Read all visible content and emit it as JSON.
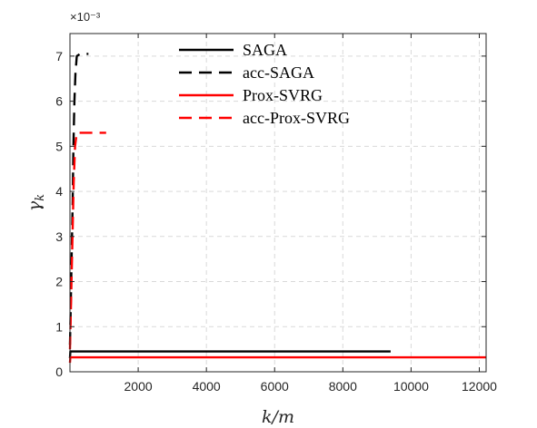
{
  "chart_data": {
    "type": "line",
    "xlabel": "k/m",
    "ylabel": "γ_k",
    "ylabel_main": "γ",
    "ylabel_sub": "k",
    "xlim": [
      0,
      12200
    ],
    "ylim": [
      0,
      0.0075
    ],
    "y_exponent_label": "×10⁻³",
    "xticks": [
      2000,
      4000,
      6000,
      8000,
      10000,
      12000
    ],
    "xtick_labels": [
      "2000",
      "4000",
      "6000",
      "8000",
      "10000",
      "12000"
    ],
    "yticks": [
      0,
      0.001,
      0.002,
      0.003,
      0.004,
      0.005,
      0.006,
      0.007
    ],
    "ytick_labels": [
      "0",
      "1",
      "2",
      "3",
      "4",
      "5",
      "6",
      "7"
    ],
    "grid": true,
    "legend_position": "top-center",
    "series": [
      {
        "name": "SAGA",
        "color": "#000000",
        "dash": "solid",
        "x": [
          0,
          10,
          20,
          9400
        ],
        "y": [
          0.0003,
          0.00045,
          0.00045,
          0.00045
        ]
      },
      {
        "name": "acc-SAGA",
        "color": "#000000",
        "dash": "dashed",
        "x": [
          0,
          20,
          50,
          80,
          100,
          130,
          160,
          200,
          300,
          540
        ],
        "y": [
          0.0006,
          0.0014,
          0.0026,
          0.0038,
          0.005,
          0.006,
          0.0066,
          0.007,
          0.00705,
          0.00705
        ]
      },
      {
        "name": "Prox-SVRG",
        "color": "#ff0000",
        "dash": "solid",
        "x": [
          0,
          10,
          20,
          12200
        ],
        "y": [
          0.0002,
          0.00032,
          0.00032,
          0.00032
        ]
      },
      {
        "name": "acc-Prox-SVRG",
        "color": "#ff0000",
        "dash": "dashed",
        "x": [
          0,
          20,
          50,
          80,
          110,
          150,
          200,
          300,
          500,
          1060
        ],
        "y": [
          0.0005,
          0.0012,
          0.0022,
          0.0032,
          0.0042,
          0.005,
          0.0053,
          0.0053,
          0.0053,
          0.0053
        ]
      }
    ]
  }
}
